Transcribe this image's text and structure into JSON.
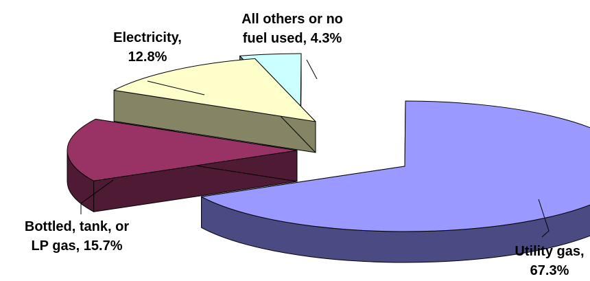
{
  "chart_data": {
    "type": "pie",
    "style": "3d-exploded",
    "legend": "none",
    "slices": [
      {
        "label": "Utility gas,",
        "value_text": "67.3%",
        "value": 67.3,
        "color": "#9999ff",
        "side_color": "#4b4b84"
      },
      {
        "label": "Bottled, tank, or",
        "label2": "LP gas, 15.7%",
        "value": 15.7,
        "color": "#993366",
        "side_color": "#4e1a34"
      },
      {
        "label": "Electricity,",
        "value_text": "12.8%",
        "value": 12.8,
        "color": "#ffffcc",
        "side_color": "#858566"
      },
      {
        "label": "All others or no",
        "label2": "fuel used, 4.3%",
        "value": 4.3,
        "color": "#ccffff",
        "side_color": "#668081"
      }
    ]
  }
}
